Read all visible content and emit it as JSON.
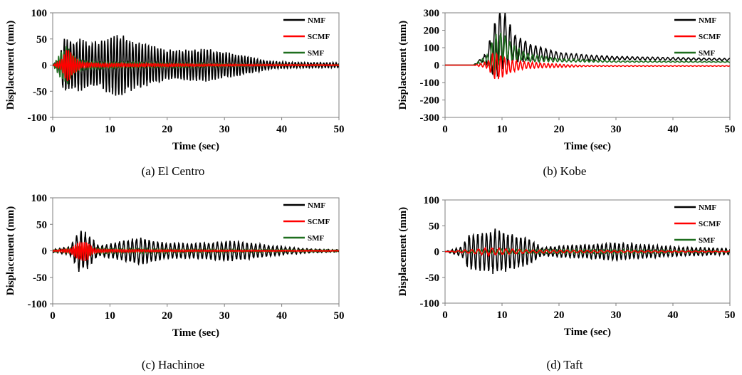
{
  "colors": {
    "NMF": "#000000",
    "SCMF": "#ff0000",
    "SMF": "#1e6e1e"
  },
  "chart_data": [
    {
      "type": "line",
      "caption": "(a) El Centro",
      "xlabel": "Time (sec)",
      "ylabel": "Displacement (mm)",
      "xlim": [
        0,
        50
      ],
      "ylim": [
        -100,
        100
      ],
      "xticks": [
        0,
        10,
        20,
        30,
        40,
        50
      ],
      "yticks": [
        -100,
        -50,
        0,
        50,
        100
      ],
      "legend_position": "top-right",
      "series": [
        {
          "name": "NMF",
          "envelope": [
            [
              0,
              0
            ],
            [
              1,
              10
            ],
            [
              2,
              58
            ],
            [
              3,
              50
            ],
            [
              5,
              52
            ],
            [
              8,
              45
            ],
            [
              11.5,
              65
            ],
            [
              14,
              48
            ],
            [
              20,
              30
            ],
            [
              27,
              32
            ],
            [
              33,
              20
            ],
            [
              38,
              8
            ],
            [
              42,
              6
            ],
            [
              50,
              5
            ]
          ],
          "offset": 0,
          "period": 0.55,
          "jitter": 0.25
        },
        {
          "name": "SCMF",
          "envelope": [
            [
              0,
              0
            ],
            [
              1.5,
              10
            ],
            [
              2.5,
              35
            ],
            [
              3.5,
              20
            ],
            [
              5,
              6
            ],
            [
              8,
              4
            ],
            [
              20,
              3
            ],
            [
              30,
              2
            ],
            [
              50,
              1
            ]
          ],
          "offset": 0,
          "period": 0.4,
          "jitter": 0.3
        },
        {
          "name": "SMF",
          "envelope": [
            [
              0,
              0
            ],
            [
              1.5,
              28
            ],
            [
              2.5,
              40
            ],
            [
              4,
              15
            ],
            [
              6,
              8
            ],
            [
              12,
              6
            ],
            [
              25,
              4
            ],
            [
              35,
              2
            ],
            [
              50,
              1
            ]
          ],
          "offset": 0,
          "period": 0.45,
          "jitter": 0.3
        }
      ]
    },
    {
      "type": "line",
      "caption": "(b) Kobe",
      "xlabel": "Time (sec)",
      "ylabel": "Displacement (mm)",
      "xlim": [
        0,
        50
      ],
      "ylim": [
        -300,
        300
      ],
      "xticks": [
        0,
        10,
        20,
        30,
        40,
        50
      ],
      "yticks": [
        -300,
        -200,
        -100,
        0,
        100,
        200,
        300
      ],
      "legend_position": "top-right",
      "series": [
        {
          "name": "NMF",
          "envelope": [
            [
              0,
              0
            ],
            [
              5,
              0
            ],
            [
              7,
              20
            ],
            [
              8.5,
              150
            ],
            [
              9.5,
              200
            ],
            [
              10.5,
              180
            ],
            [
              12,
              90
            ],
            [
              15,
              50
            ],
            [
              20,
              25
            ],
            [
              30,
              10
            ],
            [
              50,
              6
            ]
          ],
          "offset": [
            [
              0,
              0
            ],
            [
              5,
              0
            ],
            [
              8,
              60
            ],
            [
              10,
              160
            ],
            [
              12,
              100
            ],
            [
              15,
              75
            ],
            [
              20,
              50
            ],
            [
              25,
              42
            ],
            [
              50,
              32
            ]
          ],
          "period": 0.9,
          "jitter": 0.2
        },
        {
          "name": "SCMF",
          "envelope": [
            [
              0,
              0
            ],
            [
              5,
              0
            ],
            [
              7.5,
              20
            ],
            [
              8.5,
              80
            ],
            [
              9.5,
              75
            ],
            [
              11,
              45
            ],
            [
              14,
              20
            ],
            [
              20,
              10
            ],
            [
              25,
              3
            ],
            [
              50,
              2
            ]
          ],
          "offset": [
            [
              0,
              0
            ],
            [
              5,
              0
            ],
            [
              8,
              0
            ],
            [
              10,
              -10
            ],
            [
              14,
              0
            ],
            [
              22,
              -5
            ],
            [
              50,
              -5
            ]
          ],
          "period": 0.7,
          "jitter": 0.3
        },
        {
          "name": "SMF",
          "envelope": [
            [
              0,
              0
            ],
            [
              5,
              0
            ],
            [
              7.5,
              30
            ],
            [
              8.5,
              120
            ],
            [
              9.5,
              100
            ],
            [
              11,
              60
            ],
            [
              14,
              25
            ],
            [
              20,
              10
            ],
            [
              30,
              4
            ],
            [
              50,
              2
            ]
          ],
          "offset": [
            [
              0,
              0
            ],
            [
              5,
              0
            ],
            [
              8,
              40
            ],
            [
              10,
              110
            ],
            [
              12,
              70
            ],
            [
              15,
              40
            ],
            [
              20,
              28
            ],
            [
              30,
              20
            ],
            [
              50,
              18
            ]
          ],
          "period": 0.8,
          "jitter": 0.25
        }
      ]
    },
    {
      "type": "line",
      "caption": "(c) Hachinoe",
      "xlabel": "Time (sec)",
      "ylabel": "Displacement (mm)",
      "xlim": [
        0,
        50
      ],
      "ylim": [
        -100,
        100
      ],
      "xticks": [
        0,
        10,
        20,
        30,
        40,
        50
      ],
      "yticks": [
        -100,
        -50,
        0,
        50,
        100
      ],
      "legend_position": "top-right",
      "series": [
        {
          "name": "NMF",
          "envelope": [
            [
              0,
              3
            ],
            [
              3,
              8
            ],
            [
              4.5,
              40
            ],
            [
              6,
              36
            ],
            [
              8,
              10
            ],
            [
              10,
              14
            ],
            [
              15,
              28
            ],
            [
              20,
              15
            ],
            [
              25,
              15
            ],
            [
              31,
              20
            ],
            [
              35,
              15
            ],
            [
              40,
              8
            ],
            [
              45,
              4
            ],
            [
              50,
              2
            ]
          ],
          "offset": 0,
          "period": 0.75,
          "jitter": 0.25
        },
        {
          "name": "SCMF",
          "envelope": [
            [
              0,
              1
            ],
            [
              3,
              4
            ],
            [
              4.5,
              18
            ],
            [
              6,
              20
            ],
            [
              7,
              5
            ],
            [
              9,
              3
            ],
            [
              20,
              2
            ],
            [
              50,
              1
            ]
          ],
          "offset": 0,
          "period": 0.4,
          "jitter": 0.3
        },
        {
          "name": "SMF",
          "envelope": [
            [
              0,
              2
            ],
            [
              3,
              5
            ],
            [
              5,
              10
            ],
            [
              7,
              6
            ],
            [
              10,
              5
            ],
            [
              20,
              4
            ],
            [
              35,
              3
            ],
            [
              50,
              2
            ]
          ],
          "offset": 0,
          "period": 0.5,
          "jitter": 0.3
        }
      ]
    },
    {
      "type": "line",
      "caption": "(d) Taft",
      "xlabel": "Time (sec)",
      "ylabel": "Displacement (mm)",
      "xlim": [
        0,
        50
      ],
      "ylim": [
        -100,
        100
      ],
      "xticks": [
        0,
        10,
        20,
        30,
        40,
        50
      ],
      "yticks": [
        -100,
        -50,
        0,
        50,
        100
      ],
      "legend_position": "top-right",
      "series": [
        {
          "name": "NMF",
          "envelope": [
            [
              0,
              0
            ],
            [
              3,
              10
            ],
            [
              4,
              35
            ],
            [
              7,
              40
            ],
            [
              9,
              45
            ],
            [
              12,
              35
            ],
            [
              15,
              25
            ],
            [
              17,
              8
            ],
            [
              20,
              12
            ],
            [
              25,
              14
            ],
            [
              30,
              18
            ],
            [
              35,
              14
            ],
            [
              40,
              10
            ],
            [
              45,
              8
            ],
            [
              50,
              6
            ]
          ],
          "offset": 0,
          "period": 0.75,
          "jitter": 0.2
        },
        {
          "name": "SCMF",
          "envelope": [
            [
              0,
              0
            ],
            [
              5,
              4
            ],
            [
              8,
              8
            ],
            [
              10,
              6
            ],
            [
              15,
              3
            ],
            [
              30,
              2
            ],
            [
              50,
              1
            ]
          ],
          "offset": 0,
          "period": 1.2,
          "jitter": 0.3
        },
        {
          "name": "SMF",
          "envelope": [
            [
              0,
              0
            ],
            [
              5,
              3
            ],
            [
              10,
              5
            ],
            [
              20,
              4
            ],
            [
              30,
              4
            ],
            [
              50,
              2
            ]
          ],
          "offset": 0,
          "period": 0.7,
          "jitter": 0.3
        }
      ]
    }
  ]
}
